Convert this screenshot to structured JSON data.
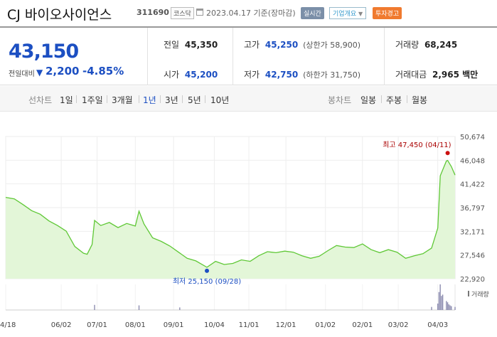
{
  "header": {
    "company": "CJ 바이오사이언스",
    "code": "311690",
    "market": "코스닥",
    "date": "2023.04.17 기준(장마감)",
    "live_button": "실시간",
    "info_button": "기업개요",
    "warning_badge": "투자경고"
  },
  "price": {
    "current": "43,150",
    "change_label": "전일대비",
    "change_arrow": "▼",
    "change": "2,200",
    "change_pct": "-4.85%"
  },
  "quotes": {
    "prev_label": "전일",
    "prev": "45,350",
    "high_label": "고가",
    "high": "45,250",
    "upper_limit": "(상한가 58,900)",
    "volume_label": "거래량",
    "volume": "68,245",
    "open_label": "시가",
    "open": "45,200",
    "low_label": "저가",
    "low": "42,750",
    "lower_limit": "(하한가 31,750)",
    "amount_label": "거래대금",
    "amount": "2,965 백만"
  },
  "tabs": {
    "line_label": "선차트",
    "line_options": [
      "1일",
      "1주일",
      "3개월",
      "1년",
      "3년",
      "5년",
      "10년"
    ],
    "active": "1년",
    "candle_label": "봉차트",
    "candle_options": [
      "일봉",
      "주봉",
      "월봉"
    ]
  },
  "colors": {
    "price_blue": "#1c4fc2",
    "line_green": "#5fc836",
    "fill_green": "#e3f6d8",
    "high_red": "#cc1111",
    "warn_orange": "#f07a2f"
  },
  "chart_data": {
    "type": "area",
    "x_start": "2022-04-18",
    "x_end": "2023-04-17",
    "xticks": [
      {
        "label": "04/18",
        "date": "2022-04-18"
      },
      {
        "label": "06/02",
        "date": "2022-06-02"
      },
      {
        "label": "07/01",
        "date": "2022-07-01"
      },
      {
        "label": "08/01",
        "date": "2022-08-01"
      },
      {
        "label": "09/01",
        "date": "2022-09-01"
      },
      {
        "label": "10/04",
        "date": "2022-10-04"
      },
      {
        "label": "11/01",
        "date": "2022-11-01"
      },
      {
        "label": "12/01",
        "date": "2022-12-01"
      },
      {
        "label": "01/02",
        "date": "2023-01-02"
      },
      {
        "label": "02/01",
        "date": "2023-02-01"
      },
      {
        "label": "03/02",
        "date": "2023-03-02"
      },
      {
        "label": "04/03",
        "date": "2023-04-03"
      }
    ],
    "yticks": [
      "50,674",
      "46,048",
      "41,422",
      "36,797",
      "32,171",
      "27,546",
      "22,920"
    ],
    "ylim": [
      22920,
      50674
    ],
    "max_annotation": "최고 47,450 (04/11)",
    "max_point": {
      "date": "2023-04-11",
      "value": 47450
    },
    "min_annotation": "최저 25,150 (09/28)",
    "min_point": {
      "date": "2022-09-28",
      "value": 25150
    },
    "volume_label": "거래량",
    "series": [
      {
        "values": [
          [
            "2022-04-18",
            38800
          ],
          [
            "2022-04-25",
            38500
          ],
          [
            "2022-05-02",
            37400
          ],
          [
            "2022-05-09",
            36200
          ],
          [
            "2022-05-16",
            35500
          ],
          [
            "2022-05-23",
            34200
          ],
          [
            "2022-05-30",
            33300
          ],
          [
            "2022-06-06",
            32200
          ],
          [
            "2022-06-13",
            29200
          ],
          [
            "2022-06-20",
            27900
          ],
          [
            "2022-06-23",
            27700
          ],
          [
            "2022-06-27",
            29600
          ],
          [
            "2022-06-29",
            34300
          ],
          [
            "2022-07-04",
            33300
          ],
          [
            "2022-07-11",
            33900
          ],
          [
            "2022-07-18",
            32900
          ],
          [
            "2022-07-25",
            33700
          ],
          [
            "2022-08-01",
            33200
          ],
          [
            "2022-08-04",
            36100
          ],
          [
            "2022-08-08",
            33600
          ],
          [
            "2022-08-15",
            30900
          ],
          [
            "2022-08-22",
            30200
          ],
          [
            "2022-08-29",
            29300
          ],
          [
            "2022-09-05",
            28100
          ],
          [
            "2022-09-12",
            26900
          ],
          [
            "2022-09-19",
            26400
          ],
          [
            "2022-09-28",
            25150
          ],
          [
            "2022-10-05",
            26300
          ],
          [
            "2022-10-12",
            25700
          ],
          [
            "2022-10-19",
            25900
          ],
          [
            "2022-10-26",
            26600
          ],
          [
            "2022-11-02",
            26300
          ],
          [
            "2022-11-09",
            27400
          ],
          [
            "2022-11-16",
            28200
          ],
          [
            "2022-11-23",
            28000
          ],
          [
            "2022-11-30",
            28300
          ],
          [
            "2022-12-07",
            28100
          ],
          [
            "2022-12-14",
            27400
          ],
          [
            "2022-12-21",
            26900
          ],
          [
            "2022-12-28",
            27300
          ],
          [
            "2023-01-04",
            28400
          ],
          [
            "2023-01-11",
            29400
          ],
          [
            "2023-01-18",
            29100
          ],
          [
            "2023-01-25",
            29000
          ],
          [
            "2023-02-01",
            29700
          ],
          [
            "2023-02-08",
            28600
          ],
          [
            "2023-02-15",
            28000
          ],
          [
            "2023-02-22",
            28600
          ],
          [
            "2023-03-01",
            28100
          ],
          [
            "2023-03-08",
            26900
          ],
          [
            "2023-03-15",
            27400
          ],
          [
            "2023-03-22",
            27800
          ],
          [
            "2023-03-29",
            28900
          ],
          [
            "2023-04-03",
            32800
          ],
          [
            "2023-04-05",
            43000
          ],
          [
            "2023-04-10",
            45900
          ],
          [
            "2023-04-11",
            46000
          ],
          [
            "2023-04-14",
            44800
          ],
          [
            "2023-04-17",
            43150
          ]
        ]
      }
    ],
    "volume_bars": [
      [
        "2022-06-29",
        0.2
      ],
      [
        "2022-08-04",
        0.18
      ],
      [
        "2022-09-06",
        0.1
      ],
      [
        "2023-03-29",
        0.12
      ],
      [
        "2023-04-03",
        0.25
      ],
      [
        "2023-04-04",
        0.7
      ],
      [
        "2023-04-05",
        1.0
      ],
      [
        "2023-04-06",
        0.55
      ],
      [
        "2023-04-07",
        0.6
      ],
      [
        "2023-04-10",
        0.35
      ],
      [
        "2023-04-11",
        0.3
      ],
      [
        "2023-04-12",
        0.22
      ],
      [
        "2023-04-13",
        0.18
      ],
      [
        "2023-04-14",
        0.15
      ],
      [
        "2023-04-17",
        0.12
      ]
    ]
  }
}
